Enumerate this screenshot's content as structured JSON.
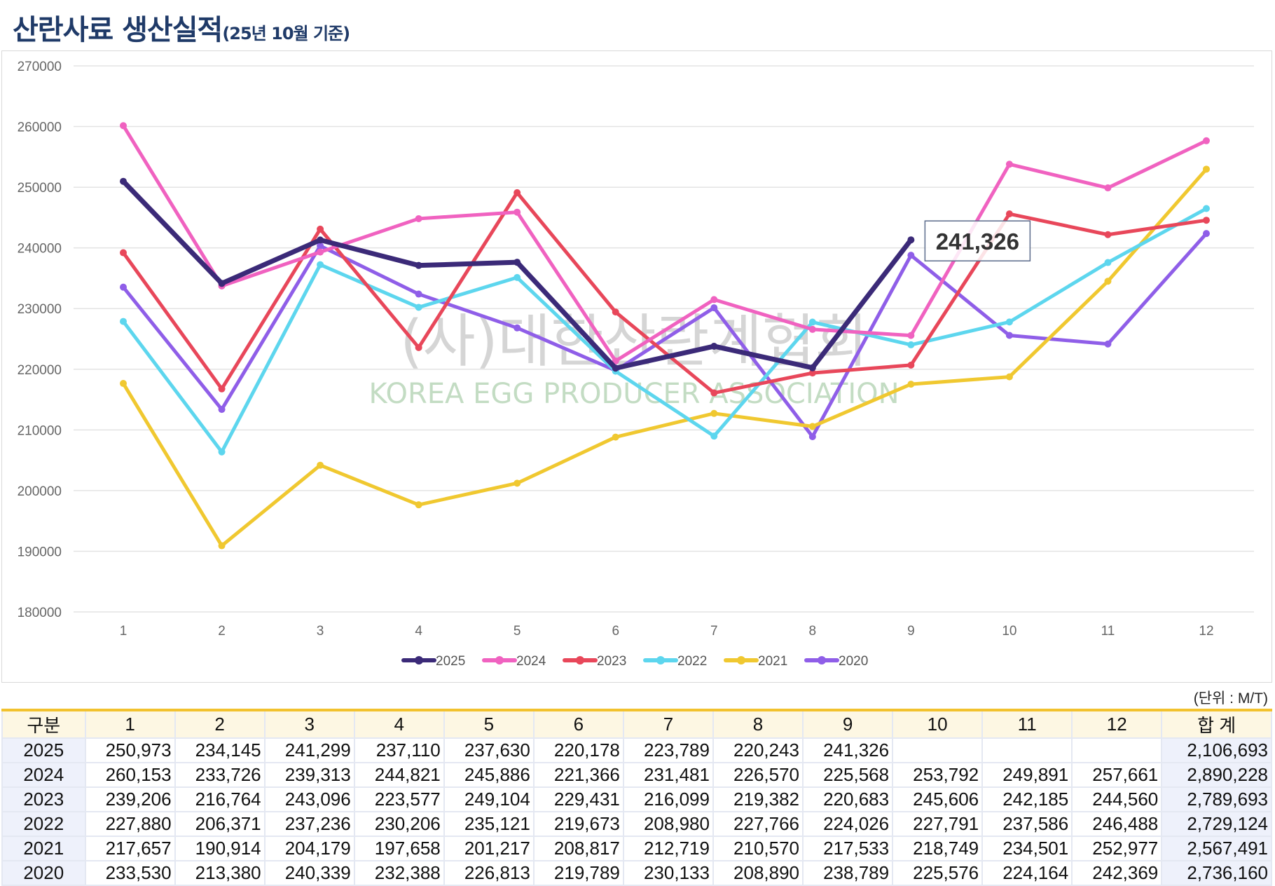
{
  "title": "산란사료 생산실적",
  "subtitle": "(25년 10월 기준)",
  "unit_label": "(단위 : M/T)",
  "watermark": {
    "korean": "(사)대한산란계협회",
    "english": "KOREA EGG PRODUCER ASSOCIATION"
  },
  "chart_data": {
    "type": "line",
    "title": "산란사료 생산실적",
    "x": [
      1,
      2,
      3,
      4,
      5,
      6,
      7,
      8,
      9,
      10,
      11,
      12
    ],
    "ylim": [
      180000,
      270000
    ],
    "yticks": [
      180000,
      190000,
      200000,
      210000,
      220000,
      230000,
      240000,
      250000,
      260000,
      270000
    ],
    "grid": true,
    "legend": "bottom",
    "annotation": {
      "series": "2025",
      "x": 9,
      "label": "241,326"
    },
    "series": [
      {
        "name": "2025",
        "color": "#3b2a78",
        "values": [
          250973,
          234145,
          241299,
          237110,
          237630,
          220178,
          223789,
          220243,
          241326,
          null,
          null,
          null
        ]
      },
      {
        "name": "2024",
        "color": "#f062c0",
        "values": [
          260153,
          233726,
          239313,
          244821,
          245886,
          221366,
          231481,
          226570,
          225568,
          253792,
          249891,
          257661
        ]
      },
      {
        "name": "2023",
        "color": "#e8475a",
        "values": [
          239206,
          216764,
          243096,
          223577,
          249104,
          229431,
          216099,
          219382,
          220683,
          245606,
          242185,
          244560
        ]
      },
      {
        "name": "2022",
        "color": "#5dd6ee",
        "values": [
          227880,
          206371,
          237236,
          230206,
          235121,
          219673,
          208980,
          227766,
          224026,
          227791,
          237586,
          246488
        ]
      },
      {
        "name": "2021",
        "color": "#f0c830",
        "values": [
          217657,
          190914,
          204179,
          197658,
          201217,
          208817,
          212719,
          210570,
          217533,
          218749,
          234501,
          252977
        ]
      },
      {
        "name": "2020",
        "color": "#8f5ee8",
        "values": [
          233530,
          213380,
          240339,
          232388,
          226813,
          219789,
          230133,
          208890,
          238789,
          225576,
          224164,
          242369
        ]
      }
    ]
  },
  "table": {
    "headers": [
      "구분",
      "1",
      "2",
      "3",
      "4",
      "5",
      "6",
      "7",
      "8",
      "9",
      "10",
      "11",
      "12",
      "합 계"
    ],
    "rows": [
      [
        "2025",
        "250,973",
        "234,145",
        "241,299",
        "237,110",
        "237,630",
        "220,178",
        "223,789",
        "220,243",
        "241,326",
        "",
        "",
        "",
        "2,106,693"
      ],
      [
        "2024",
        "260,153",
        "233,726",
        "239,313",
        "244,821",
        "245,886",
        "221,366",
        "231,481",
        "226,570",
        "225,568",
        "253,792",
        "249,891",
        "257,661",
        "2,890,228"
      ],
      [
        "2023",
        "239,206",
        "216,764",
        "243,096",
        "223,577",
        "249,104",
        "229,431",
        "216,099",
        "219,382",
        "220,683",
        "245,606",
        "242,185",
        "244,560",
        "2,789,693"
      ],
      [
        "2022",
        "227,880",
        "206,371",
        "237,236",
        "230,206",
        "235,121",
        "219,673",
        "208,980",
        "227,766",
        "224,026",
        "227,791",
        "237,586",
        "246,488",
        "2,729,124"
      ],
      [
        "2021",
        "217,657",
        "190,914",
        "204,179",
        "197,658",
        "201,217",
        "208,817",
        "212,719",
        "210,570",
        "217,533",
        "218,749",
        "234,501",
        "252,977",
        "2,567,491"
      ],
      [
        "2020",
        "233,530",
        "213,380",
        "240,339",
        "232,388",
        "226,813",
        "219,789",
        "230,133",
        "208,890",
        "238,789",
        "225,576",
        "224,164",
        "242,369",
        "2,736,160"
      ]
    ]
  }
}
